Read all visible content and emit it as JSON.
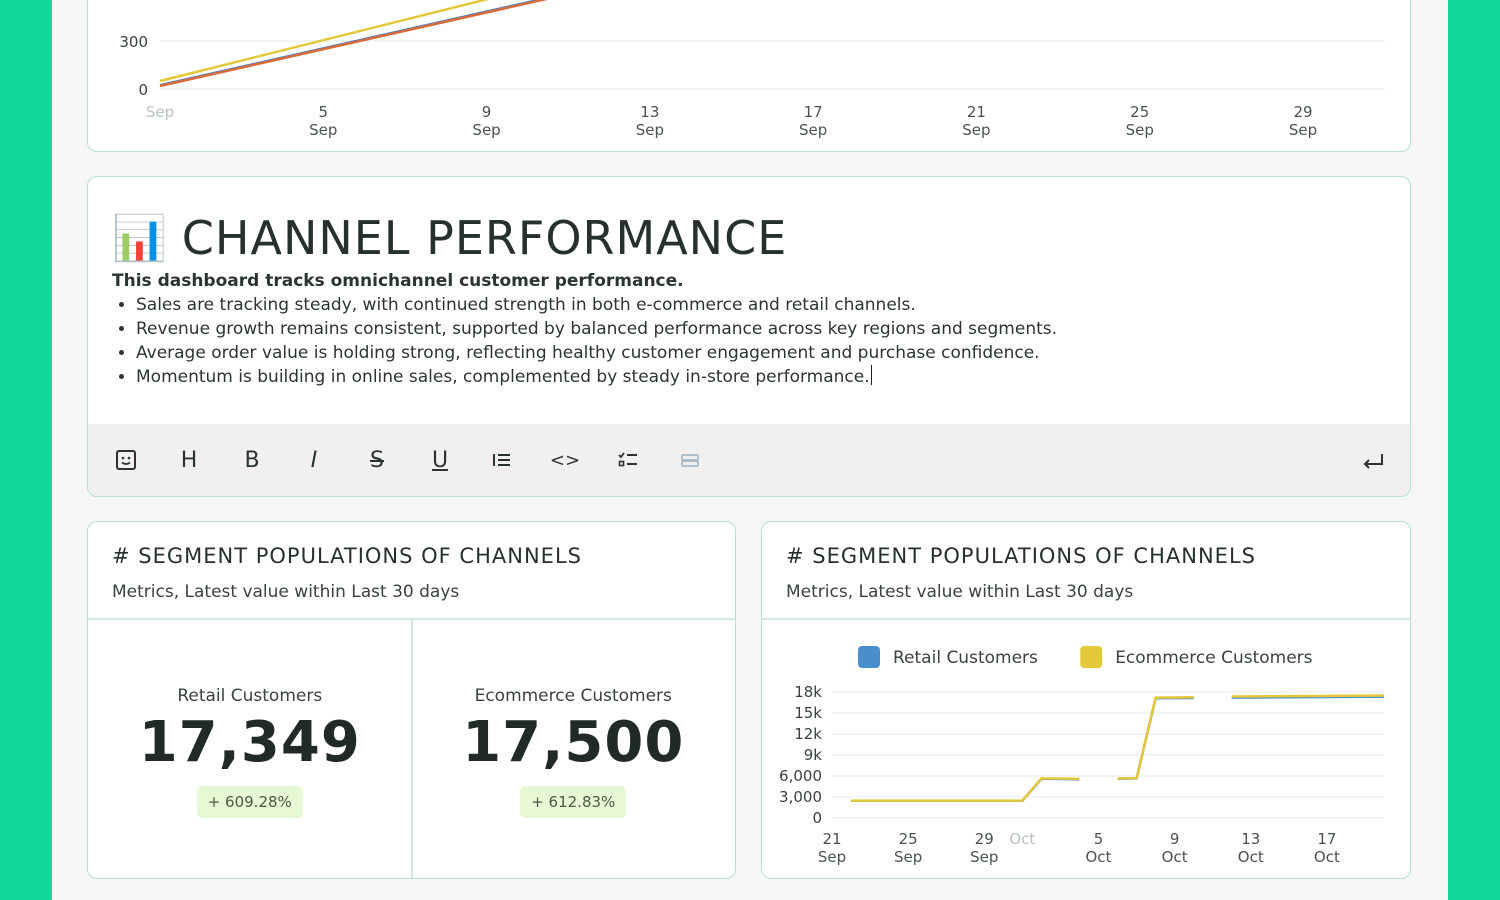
{
  "top_chart": {
    "y_ticks": [
      "300",
      "0"
    ],
    "x_ticks": [
      {
        "day": "",
        "month": "Sep",
        "muted": true
      },
      {
        "day": "5",
        "month": "Sep"
      },
      {
        "day": "9",
        "month": "Sep"
      },
      {
        "day": "13",
        "month": "Sep"
      },
      {
        "day": "17",
        "month": "Sep"
      },
      {
        "day": "21",
        "month": "Sep"
      },
      {
        "day": "25",
        "month": "Sep"
      },
      {
        "day": "29",
        "month": "Sep"
      }
    ],
    "series_colors": [
      "#e3c93a",
      "#4c80c4",
      "#d96a3a"
    ]
  },
  "editor": {
    "emoji": "📊",
    "title": "CHANNEL PERFORMANCE",
    "lead": "This dashboard tracks omnichannel customer performance.",
    "bullets": [
      "Sales are tracking steady, with continued strength in both e-commerce and retail channels.",
      "Revenue growth remains consistent, supported by balanced performance across key regions and segments.",
      "Average order value is holding strong, reflecting healthy customer engagement and purchase confidence.",
      "Momentum is building in online sales, complemented by steady in-store performance."
    ],
    "toolbar": {
      "heading": "H",
      "bold": "B",
      "italic": "I",
      "strike": "S",
      "underline": "U",
      "code": "<>"
    }
  },
  "metric_card": {
    "title": "# SEGMENT POPULATIONS OF CHANNELS",
    "subtitle": "Metrics, Latest value within Last 30 days",
    "metrics": [
      {
        "label": "Retail Customers",
        "value": "17,349",
        "delta": "+ 609.28%"
      },
      {
        "label": "Ecommerce Customers",
        "value": "17,500",
        "delta": "+ 612.83%"
      }
    ],
    "delta_bg": "#e6f8d4"
  },
  "chart_card": {
    "title": "# SEGMENT POPULATIONS OF CHANNELS",
    "subtitle": "Metrics, Latest value within Last 30 days"
  },
  "chart_data": {
    "type": "line",
    "legend": [
      {
        "name": "Retail Customers",
        "color": "#4a8fcb"
      },
      {
        "name": "Ecommerce Customers",
        "color": "#e3c93a"
      }
    ],
    "y_ticks": [
      {
        "value": 0,
        "label": "0"
      },
      {
        "value": 3000,
        "label": "3,000"
      },
      {
        "value": 6000,
        "label": "6,000"
      },
      {
        "value": 9000,
        "label": "9k"
      },
      {
        "value": 12000,
        "label": "12k"
      },
      {
        "value": 15000,
        "label": "15k"
      },
      {
        "value": 18000,
        "label": "18k"
      }
    ],
    "ylim": [
      0,
      18000
    ],
    "xlim": [
      0,
      29
    ],
    "x_ticks": [
      {
        "x": 0,
        "day": "21",
        "month": "Sep"
      },
      {
        "x": 4,
        "day": "25",
        "month": "Sep"
      },
      {
        "x": 8,
        "day": "29",
        "month": "Sep"
      },
      {
        "x": 10,
        "day": "",
        "month": "Oct",
        "muted": true
      },
      {
        "x": 14,
        "day": "5",
        "month": "Oct"
      },
      {
        "x": 18,
        "day": "9",
        "month": "Oct"
      },
      {
        "x": 22,
        "day": "13",
        "month": "Oct"
      },
      {
        "x": 26,
        "day": "17",
        "month": "Oct"
      }
    ],
    "series": [
      {
        "name": "Retail Customers",
        "segments": [
          [
            [
              1,
              2450
            ],
            [
              10,
              2450
            ],
            [
              11,
              5600
            ],
            [
              13,
              5550
            ]
          ],
          [
            [
              15,
              5600
            ],
            [
              16,
              5650
            ],
            [
              17,
              17100
            ],
            [
              19,
              17150
            ]
          ],
          [
            [
              21,
              17200
            ],
            [
              29,
              17349
            ]
          ]
        ]
      },
      {
        "name": "Ecommerce Customers",
        "segments": [
          [
            [
              1,
              2480
            ],
            [
              10,
              2480
            ],
            [
              11,
              5650
            ],
            [
              13,
              5600
            ]
          ],
          [
            [
              15,
              5650
            ],
            [
              16,
              5700
            ],
            [
              17,
              17200
            ],
            [
              19,
              17250
            ]
          ],
          [
            [
              21,
              17350
            ],
            [
              29,
              17500
            ]
          ]
        ]
      }
    ]
  }
}
